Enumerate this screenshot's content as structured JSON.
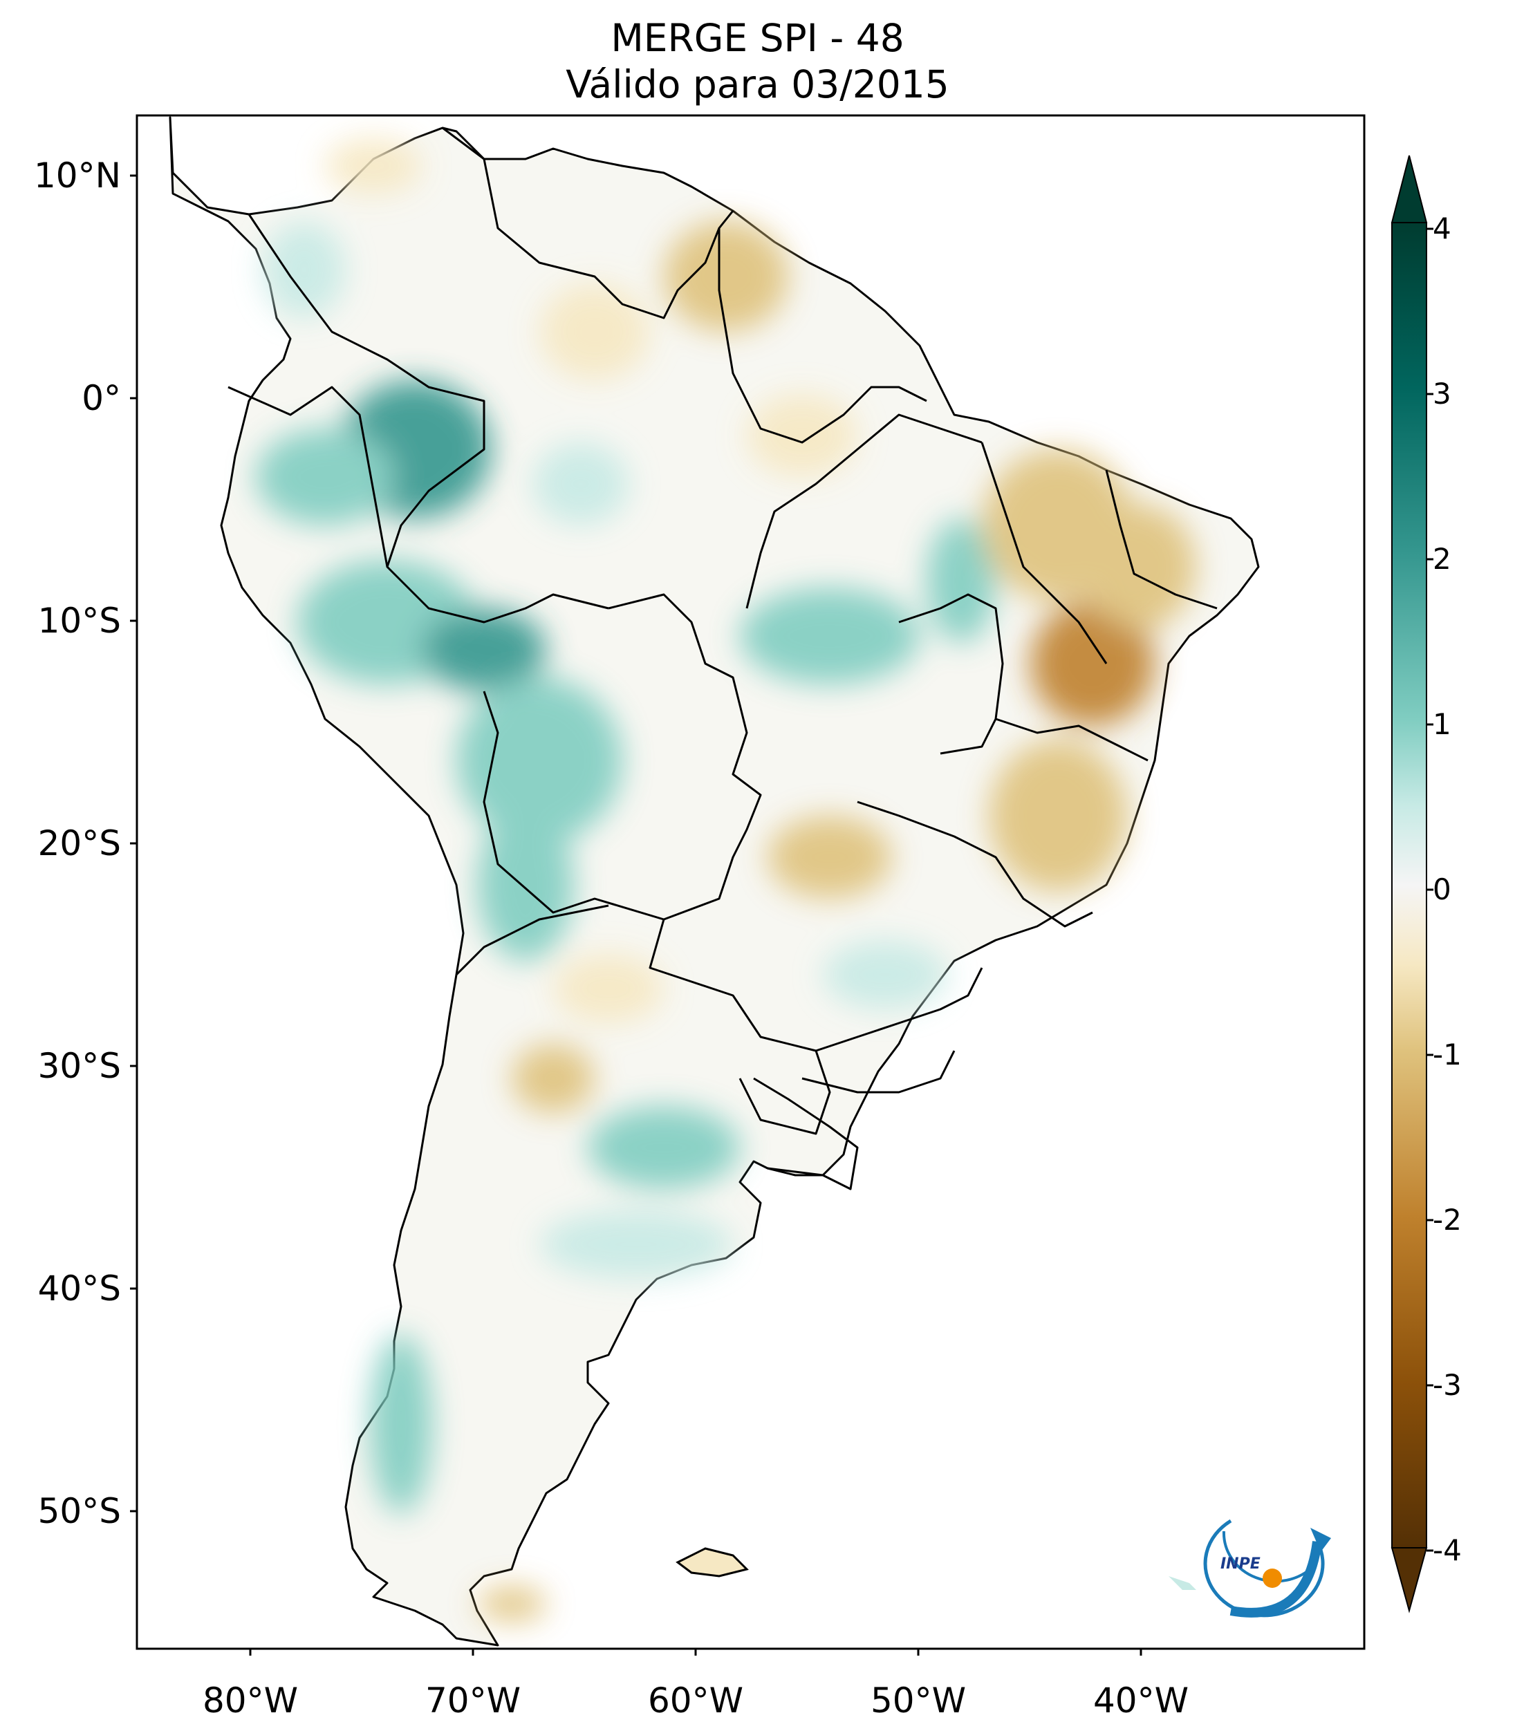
{
  "title": {
    "line1": "MERGE   SPI - 48",
    "line2": "Válido para 03/2015"
  },
  "axes": {
    "lat_ticks": [
      "10°N",
      "0°",
      "10°S",
      "20°S",
      "30°S",
      "40°S",
      "50°S"
    ],
    "lon_ticks": [
      "80°W",
      "70°W",
      "60°W",
      "50°W",
      "40°W"
    ],
    "lon_range": [
      -85,
      -30
    ],
    "lat_range": [
      -56,
      13
    ]
  },
  "colorbar": {
    "ticks": [
      "4",
      "3",
      "2",
      "1",
      "0",
      "-1",
      "-2",
      "-3",
      "-4"
    ],
    "range": [
      -4,
      4
    ],
    "extend": "both",
    "colormap": "BrBG",
    "colors": {
      "strong_dry": "#543005",
      "dry": "#bf812d",
      "mild_dry": "#f6e8c3",
      "neutral": "#f5f5f5",
      "mild_wet": "#c7eae5",
      "wet": "#35978f",
      "strong_wet": "#003c30"
    }
  },
  "logo": {
    "text": "INPE",
    "name": "inpe-logo"
  }
}
